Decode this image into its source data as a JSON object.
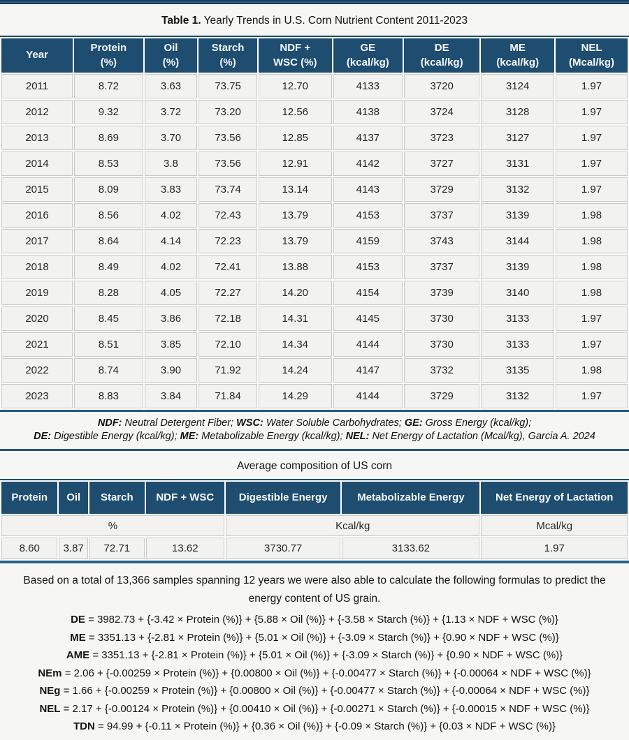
{
  "colors": {
    "header_bg": "#1e4d70",
    "rule": "#26587b",
    "cell_bg": "#f2f2f1",
    "cell_border": "#c8c8c8",
    "page_bg": "#f6f6f5",
    "header_text": "#f4f8fb"
  },
  "table1": {
    "title_prefix": "Table 1.",
    "title_rest": " Yearly Trends in U.S. Corn Nutrient Content 2011-2023",
    "headers": [
      [
        "Year"
      ],
      [
        "Protein",
        "(%)"
      ],
      [
        "Oil",
        "(%)"
      ],
      [
        "Starch",
        "(%)"
      ],
      [
        "NDF +",
        "WSC (%)"
      ],
      [
        "GE",
        "(kcal/kg)"
      ],
      [
        "DE",
        "(kcal/kg)"
      ],
      [
        "ME",
        "(kcal/kg)"
      ],
      [
        "NEL",
        "(Mcal/kg)"
      ]
    ],
    "col_widths": [
      "11.6%",
      "11.2%",
      "8.6%",
      "9.5%",
      "11.9%",
      "11.3%",
      "12.3%",
      "11.9%",
      "11.7%"
    ],
    "rows": [
      [
        "2011",
        "8.72",
        "3.63",
        "73.75",
        "12.70",
        "4133",
        "3720",
        "3124",
        "1.97"
      ],
      [
        "2012",
        "9.32",
        "3.72",
        "73.20",
        "12.56",
        "4138",
        "3724",
        "3128",
        "1.97"
      ],
      [
        "2013",
        "8.69",
        "3.70",
        "73.56",
        "12.85",
        "4137",
        "3723",
        "3127",
        "1.97"
      ],
      [
        "2014",
        "8.53",
        "3.8",
        "73.56",
        "12.91",
        "4142",
        "3727",
        "3131",
        "1.97"
      ],
      [
        "2015",
        "8.09",
        "3.83",
        "73.74",
        "13.14",
        "4143",
        "3729",
        "3132",
        "1.97"
      ],
      [
        "2016",
        "8.56",
        "4.02",
        "72.43",
        "13.79",
        "4153",
        "3737",
        "3139",
        "1.98"
      ],
      [
        "2017",
        "8.64",
        "4.14",
        "72.23",
        "13.79",
        "4159",
        "3743",
        "3144",
        "1.98"
      ],
      [
        "2018",
        "8.49",
        "4.02",
        "72.41",
        "13.88",
        "4153",
        "3737",
        "3139",
        "1.98"
      ],
      [
        "2019",
        "8.28",
        "4.05",
        "72.27",
        "14.20",
        "4154",
        "3739",
        "3140",
        "1.98"
      ],
      [
        "2020",
        "8.45",
        "3.86",
        "72.18",
        "14.31",
        "4145",
        "3730",
        "3133",
        "1.97"
      ],
      [
        "2021",
        "8.51",
        "3.85",
        "72.10",
        "14.34",
        "4144",
        "3730",
        "3133",
        "1.97"
      ],
      [
        "2022",
        "8.74",
        "3.90",
        "71.92",
        "14.24",
        "4147",
        "3732",
        "3135",
        "1.98"
      ],
      [
        "2023",
        "8.83",
        "3.84",
        "71.84",
        "14.29",
        "4144",
        "3729",
        "3132",
        "1.97"
      ]
    ],
    "footnote_line1": [
      {
        "text": "NDF:",
        "bold": true
      },
      {
        "text": " Neutral Detergent Fiber; ",
        "bold": false
      },
      {
        "text": "WSC:",
        "bold": true
      },
      {
        "text": " Water Soluble Carbohydrates; ",
        "bold": false
      },
      {
        "text": "GE:",
        "bold": true
      },
      {
        "text": " Gross Energy (kcal/kg);",
        "bold": false
      }
    ],
    "footnote_line2": [
      {
        "text": "DE:",
        "bold": true
      },
      {
        "text": " Digestible Energy (kcal/kg);  ",
        "bold": false
      },
      {
        "text": "ME:",
        "bold": true
      },
      {
        "text": " Metabolizable Energy (kcal/kg); ",
        "bold": false
      },
      {
        "text": "NEL:",
        "bold": true
      },
      {
        "text": " Net Energy of Lactation (Mcal/kg), Garcia A. 2024",
        "bold": false
      }
    ]
  },
  "table2": {
    "title": "Average composition of US corn",
    "headers": [
      "Protein",
      "Oil",
      "Starch",
      "NDF + WSC",
      "Digestible Energy",
      "Metabolizable Energy",
      "Net Energy of Lactation"
    ],
    "col_widths": [
      "9.1%",
      "4.7%",
      "8.9%",
      "12.7%",
      "18.6%",
      "22.3%",
      "23.7%"
    ],
    "units": [
      {
        "label": "%",
        "span": 4
      },
      {
        "label": "Kcal/kg",
        "span": 2
      },
      {
        "label": "Mcal/kg",
        "span": 1
      }
    ],
    "values": [
      "8.60",
      "3.87",
      "72.71",
      "13.62",
      "3730.77",
      "3133.62",
      "1.97"
    ]
  },
  "formulas": {
    "intro": "Based on a total of 13,366 samples spanning 12 years we were also able to calculate the following formulas to predict the energy content of US grain.",
    "lines": [
      {
        "label": "DE",
        "expr": " = 3982.73 + {-3.42 × Protein (%)} + {5.88 × Oil (%)} + {-3.58 × Starch (%)} + {1.13 × NDF + WSC (%)}"
      },
      {
        "label": "ME",
        "expr": " = 3351.13 + {-2.81 × Protein (%)} + {5.01 × Oil (%)} + {-3.09 × Starch (%)} + {0.90 × NDF + WSC (%)}"
      },
      {
        "label": "AME",
        "expr": " = 3351.13 + {-2.81 × Protein (%)} + {5.01 × Oil (%)} + {-3.09 × Starch (%)} + {0.90 × NDF + WSC (%)}"
      },
      {
        "label": "NEm",
        "expr": " = 2.06 + {-0.00259 × Protein (%)} + {0.00800 × Oil (%)} + {-0.00477 × Starch (%)} + {-0.00064 × NDF + WSC (%)}"
      },
      {
        "label": "NEg",
        "expr": " = 1.66 + {-0.00259 × Protein (%)} + {0.00800 × Oil (%)} + {-0.00477 × Starch (%)} + {-0.00064 × NDF + WSC (%)}"
      },
      {
        "label": "NEL",
        "expr": " = 2.17 + {-0.00124 × Protein (%)} + {0.00410 × Oil (%)} + {-0.00271 × Starch (%)} + {-0.00015 × NDF + WSC (%)}"
      },
      {
        "label": "TDN",
        "expr": " = 94.99 + {-0.11 × Protein (%)} + {0.36 × Oil (%)} + {-0.09 × Starch (%)} + {0.03 × NDF + WSC (%)}"
      }
    ]
  }
}
